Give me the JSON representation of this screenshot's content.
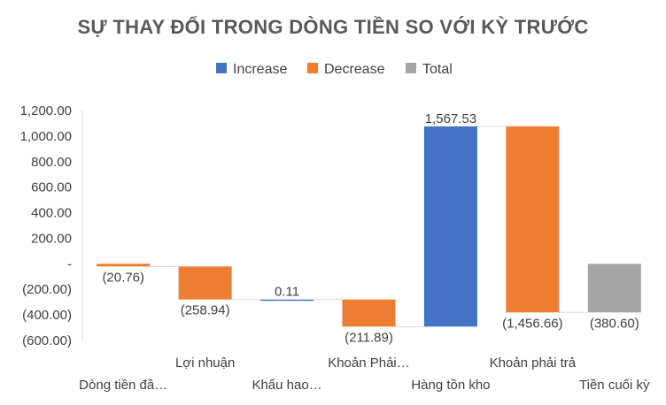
{
  "chart_data": {
    "type": "waterfall",
    "title": "SỰ THAY ĐỔI TRONG DÒNG TIỀN SO VỚI KỲ TRƯỚC",
    "legend": {
      "placement": "top",
      "entries": [
        {
          "name": "Increase",
          "color": "#4472C4"
        },
        {
          "name": "Decrease",
          "color": "#ED7D31"
        },
        {
          "name": "Total",
          "color": "#A5A5A5"
        }
      ]
    },
    "y_axis": {
      "range": [
        -600,
        1200
      ],
      "ticks": [
        {
          "value": 1200,
          "label": "1,200.00"
        },
        {
          "value": 1000,
          "label": "1,000.00"
        },
        {
          "value": 800,
          "label": "800.00"
        },
        {
          "value": 600,
          "label": "600.00"
        },
        {
          "value": 400,
          "label": "400.00"
        },
        {
          "value": 200,
          "label": "200.00"
        },
        {
          "value": 0,
          "label": "-"
        },
        {
          "value": -200,
          "label": "(200.00)"
        },
        {
          "value": -400,
          "label": "(400.00)"
        },
        {
          "value": -600,
          "label": "(600.00)"
        }
      ]
    },
    "grid": false,
    "categories": [
      "Dòng tiền đầ…",
      "Lợi nhuận",
      "Khấu hao…",
      "Khoản Phải…",
      "Hàng tồn kho",
      "Khoản phải trả",
      "Tiền cuối kỳ"
    ],
    "bars": [
      {
        "category": "Dòng tiền đầ…",
        "kind": "Decrease",
        "value": -20.76,
        "label": "(20.76)"
      },
      {
        "category": "Lợi nhuận",
        "kind": "Decrease",
        "value": -258.94,
        "label": "(258.94)"
      },
      {
        "category": "Khấu hao…",
        "kind": "Increase",
        "value": 0.11,
        "label": "0.11"
      },
      {
        "category": "Khoản Phải…",
        "kind": "Decrease",
        "value": -211.89,
        "label": "(211.89)"
      },
      {
        "category": "Hàng tồn kho",
        "kind": "Increase",
        "value": 1567.53,
        "label": "1,567.53"
      },
      {
        "category": "Khoản phải trả",
        "kind": "Decrease",
        "value": -1456.66,
        "label": "(1,456.66)"
      },
      {
        "category": "Tiền cuối kỳ",
        "kind": "Total",
        "value": -380.6,
        "label": "(380.60)"
      }
    ]
  }
}
